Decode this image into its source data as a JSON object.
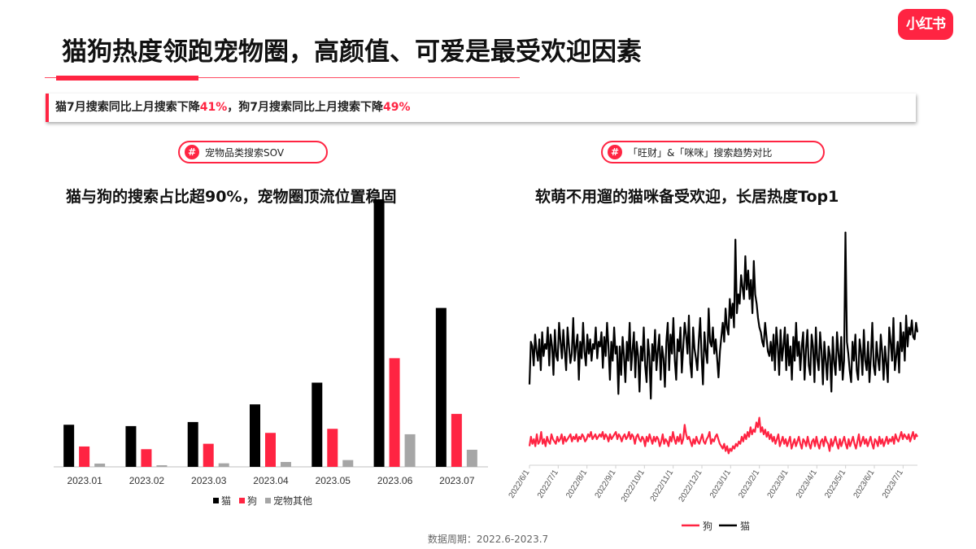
{
  "brand": {
    "logo_text": "小红书",
    "accent": "#ff2442"
  },
  "title": "猫狗热度领跑宠物圈，高颜值、可爱是最受欢迎因素",
  "summary": {
    "part1": "猫7月搜索同比上月搜索下降",
    "val1": "41%",
    "sep": "，",
    "part2": "狗7月搜索同比上月搜索下降",
    "val2": "49%"
  },
  "left_panel": {
    "tag_hash": "#",
    "tag_label": "宠物品类搜索SOV",
    "subtitle": "猫与狗的搜索占比超90%，宠物圈顶流位置稳固"
  },
  "right_panel": {
    "tag_hash": "#",
    "tag_label": "「旺财」&「咪咪」搜索趋势对比",
    "subtitle": "软萌不用遛的猫咪备受欢迎，长居热度Top1"
  },
  "footer": "数据周期：2022.6-2023.7",
  "chart_data": [
    {
      "type": "bar",
      "categories": [
        "2023.01",
        "2023.02",
        "2023.03",
        "2023.04",
        "2023.05",
        "2023.06",
        "2023.07"
      ],
      "series": [
        {
          "name": "猫",
          "color": "#000000",
          "values": [
            15.5,
            15,
            16.5,
            23,
            31,
            98.5,
            58.5
          ]
        },
        {
          "name": "狗",
          "color": "#ff2442",
          "values": [
            7.5,
            6.5,
            8.5,
            12.5,
            14,
            40,
            19.5
          ]
        },
        {
          "name": "宠物其他",
          "color": "#a6a6a6",
          "values": [
            1.2,
            0.6,
            1.3,
            1.8,
            2.5,
            12,
            6.3
          ]
        }
      ],
      "ylim": [
        0,
        100
      ],
      "legend_position": "bottom",
      "grid": false
    },
    {
      "type": "line",
      "x_ticks": [
        "2022/6/1",
        "2022/7/1",
        "2022/8/1",
        "2022/9/1",
        "2022/10/1",
        "2022/11/1",
        "2022/12/1",
        "2023/1/1",
        "2023/2/1",
        "2023/3/1",
        "2023/4/1",
        "2023/5/1",
        "2023/6/1",
        "2023/7/1"
      ],
      "series": [
        {
          "name": "猫",
          "color": "#000000",
          "values": [
            34,
            52,
            50,
            42,
            55,
            48,
            44,
            53,
            40,
            56,
            46,
            51,
            49,
            58,
            42,
            55,
            50,
            38,
            57,
            46,
            44,
            60,
            52,
            45,
            57,
            48,
            40,
            58,
            50,
            43,
            47,
            62,
            44,
            50,
            55,
            36,
            52,
            45,
            60,
            48,
            42,
            55,
            47,
            53,
            44,
            51,
            49,
            58,
            45,
            52,
            50,
            56,
            41,
            54,
            46,
            60,
            50,
            36,
            52,
            44,
            58,
            47,
            50,
            30,
            50,
            38,
            54,
            46,
            35,
            52,
            44,
            60,
            40,
            48,
            56,
            37,
            52,
            46,
            31,
            50,
            44,
            58,
            42,
            35,
            53,
            46,
            28,
            51,
            44,
            57,
            40,
            48,
            55,
            36,
            50,
            45,
            33,
            52,
            60,
            40,
            55,
            47,
            62,
            44,
            36,
            53,
            48,
            58,
            39,
            50,
            60,
            55,
            47,
            63,
            43,
            37,
            58,
            49,
            45,
            40,
            52,
            62,
            46,
            34,
            56,
            48,
            43,
            66,
            52,
            50,
            58,
            47,
            53,
            45,
            37,
            48,
            54,
            60,
            52,
            66,
            58,
            55,
            70,
            62,
            68,
            58,
            95,
            64,
            72,
            68,
            80,
            75,
            70,
            88,
            74,
            82,
            70,
            78,
            64,
            86,
            72,
            68,
            62,
            58,
            56,
            52,
            50,
            60,
            54,
            48,
            46,
            52,
            44,
            55,
            40,
            58,
            50,
            38,
            57,
            44,
            50,
            58,
            40,
            55,
            42,
            50,
            36,
            54,
            44,
            60,
            46,
            52,
            40,
            50,
            56,
            36,
            49,
            57,
            42,
            38,
            55,
            50,
            35,
            58,
            45,
            40,
            56,
            48,
            34,
            52,
            44,
            36,
            50,
            46,
            31,
            54,
            43,
            38,
            56,
            47,
            40,
            54,
            36,
            44,
            98,
            52,
            47,
            40,
            35,
            52,
            44,
            55,
            40,
            36,
            53,
            48,
            38,
            57,
            44,
            40,
            52,
            35,
            46,
            60,
            42,
            38,
            52,
            45,
            40,
            55,
            48,
            36,
            50,
            43,
            35,
            58,
            52,
            44,
            62,
            40,
            46,
            52,
            39,
            60,
            48,
            56,
            44,
            63,
            50,
            58,
            55,
            61,
            54,
            53,
            60,
            56
          ]
        },
        {
          "name": "狗",
          "color": "#ff2442",
          "values": [
            8,
            12,
            9,
            11,
            8,
            13,
            9,
            10,
            14,
            9,
            11,
            8,
            12,
            10,
            9,
            13,
            11,
            10,
            9,
            12,
            10,
            11,
            13,
            9,
            12,
            10,
            11,
            12,
            13,
            10,
            12,
            11,
            13,
            10,
            12,
            11,
            13,
            12,
            10,
            11,
            13,
            12,
            14,
            11,
            12,
            13,
            11,
            12,
            13,
            12,
            14,
            11,
            13,
            12,
            10,
            13,
            11,
            12,
            13,
            14,
            11,
            13,
            12,
            10,
            12,
            13,
            11,
            12,
            14,
            11,
            13,
            12,
            9,
            12,
            13,
            11,
            10,
            12,
            11,
            8,
            12,
            10,
            13,
            11,
            9,
            12,
            10,
            12,
            11,
            8,
            10,
            13,
            9,
            11,
            10,
            8,
            12,
            10,
            14,
            11,
            9,
            12,
            10,
            13,
            9,
            11,
            17,
            13,
            11,
            12,
            10,
            8,
            11,
            9,
            12,
            10,
            9,
            11,
            13,
            10,
            9,
            11,
            12,
            14,
            9,
            11,
            10,
            12,
            13,
            11,
            9,
            8,
            7,
            9,
            6,
            8,
            5,
            7,
            6,
            8,
            7,
            9,
            8,
            10,
            9,
            12,
            10,
            13,
            11,
            14,
            12,
            16,
            13,
            15,
            14,
            18,
            16,
            20,
            14,
            16,
            13,
            15,
            12,
            14,
            11,
            13,
            10,
            12,
            9,
            11,
            13,
            8,
            10,
            12,
            9,
            11,
            8,
            10,
            12,
            7,
            9,
            11,
            8,
            10,
            12,
            9,
            7,
            11,
            10,
            8,
            12,
            9,
            7,
            10,
            11,
            8,
            12,
            9,
            7,
            10,
            11,
            8,
            12,
            10,
            9,
            6,
            11,
            8,
            10,
            12,
            9,
            7,
            11,
            8,
            10,
            12,
            9,
            7,
            11,
            8,
            10,
            12,
            9,
            7,
            10,
            13,
            8,
            10,
            12,
            9,
            11,
            8,
            10,
            12,
            9,
            7,
            11,
            10,
            8,
            12,
            9,
            11,
            8,
            10,
            12,
            9,
            11,
            10,
            12,
            9,
            13,
            11,
            10,
            12,
            14,
            11,
            13,
            12,
            11,
            13,
            10,
            12,
            14,
            11,
            13,
            12
          ]
        }
      ],
      "legend_position": "bottom",
      "grid": false
    }
  ]
}
